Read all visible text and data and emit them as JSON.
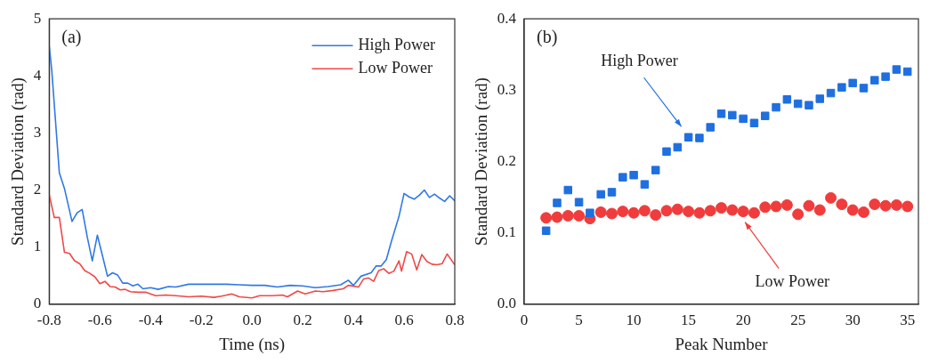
{
  "chart_data": [
    {
      "type": "line",
      "xlabel": "Time (ns)",
      "ylabel": "Standard Deviation (rad)",
      "annotations": [
        "(a)"
      ],
      "xlim": [
        -0.8,
        0.8
      ],
      "ylim": [
        0,
        5
      ],
      "xticks": [
        -0.8,
        -0.6,
        -0.4,
        -0.2,
        {
          "value": 0,
          "label": "0.0"
        },
        0.2,
        0.4,
        0.6,
        0.8
      ],
      "yticks": [
        0,
        1,
        2,
        3,
        4,
        5
      ],
      "legend": "top right",
      "grid": false,
      "marker": "none",
      "line_style": "solid",
      "series": [
        {
          "name": "High Power",
          "color": "#2f78e6",
          "x": [
            -0.8,
            -0.79,
            -0.76,
            -0.74,
            -0.71,
            -0.69,
            -0.67,
            -0.65,
            -0.63,
            -0.61,
            -0.59,
            -0.57,
            -0.55,
            -0.53,
            -0.51,
            -0.49,
            -0.47,
            -0.45,
            -0.43,
            -0.4,
            -0.37,
            -0.33,
            -0.3,
            -0.25,
            -0.2,
            -0.15,
            -0.1,
            -0.05,
            0,
            0.05,
            0.1,
            0.15,
            0.2,
            0.25,
            0.3,
            0.35,
            0.38,
            0.4,
            0.43,
            0.47,
            0.49,
            0.51,
            0.53,
            0.55,
            0.58,
            0.6,
            0.62,
            0.64,
            0.66,
            0.68,
            0.7,
            0.72,
            0.74,
            0.76,
            0.78,
            0.8
          ],
          "values": [
            4.53,
            4.1,
            2.3,
            2.03,
            1.45,
            1.6,
            1.66,
            1.18,
            0.76,
            1.21,
            0.85,
            0.49,
            0.55,
            0.51,
            0.37,
            0.37,
            0.32,
            0.35,
            0.27,
            0.29,
            0.26,
            0.31,
            0.3,
            0.35,
            0.35,
            0.35,
            0.35,
            0.34,
            0.33,
            0.33,
            0.3,
            0.33,
            0.32,
            0.29,
            0.31,
            0.34,
            0.42,
            0.33,
            0.49,
            0.55,
            0.67,
            0.67,
            0.78,
            1.1,
            1.54,
            1.94,
            1.88,
            1.84,
            1.91,
            2.0,
            1.87,
            1.93,
            1.86,
            1.8,
            1.9,
            1.81
          ]
        },
        {
          "name": "Low Power",
          "color": "#f04848",
          "x": [
            -0.8,
            -0.78,
            -0.76,
            -0.74,
            -0.72,
            -0.7,
            -0.68,
            -0.66,
            -0.64,
            -0.62,
            -0.6,
            -0.58,
            -0.56,
            -0.54,
            -0.52,
            -0.5,
            -0.48,
            -0.45,
            -0.42,
            -0.38,
            -0.34,
            -0.3,
            -0.25,
            -0.2,
            -0.15,
            -0.12,
            -0.08,
            -0.05,
            0,
            0.03,
            0.08,
            0.12,
            0.14,
            0.18,
            0.21,
            0.25,
            0.28,
            0.32,
            0.36,
            0.38,
            0.42,
            0.44,
            0.46,
            0.48,
            0.5,
            0.52,
            0.54,
            0.56,
            0.58,
            0.59,
            0.61,
            0.63,
            0.65,
            0.67,
            0.69,
            0.71,
            0.73,
            0.75,
            0.77,
            0.8
          ],
          "values": [
            1.92,
            1.52,
            1.52,
            0.91,
            0.89,
            0.76,
            0.71,
            0.59,
            0.54,
            0.48,
            0.36,
            0.4,
            0.31,
            0.3,
            0.25,
            0.26,
            0.22,
            0.21,
            0.21,
            0.15,
            0.16,
            0.15,
            0.13,
            0.14,
            0.12,
            0.14,
            0.18,
            0.13,
            0.11,
            0.15,
            0.15,
            0.16,
            0.13,
            0.23,
            0.18,
            0.23,
            0.22,
            0.24,
            0.27,
            0.33,
            0.3,
            0.44,
            0.46,
            0.4,
            0.59,
            0.62,
            0.54,
            0.58,
            0.76,
            0.58,
            0.92,
            0.88,
            0.6,
            0.87,
            0.75,
            0.7,
            0.69,
            0.71,
            0.88,
            0.69
          ]
        }
      ]
    },
    {
      "type": "scatter",
      "xlabel": "Peak Number",
      "ylabel": "Standard Deviation (rad)",
      "annotations": [
        "(b)"
      ],
      "xlim": [
        0,
        36
      ],
      "ylim": [
        0,
        0.4
      ],
      "xticks": [
        0,
        5,
        10,
        15,
        20,
        25,
        30,
        35
      ],
      "yticks": [
        {
          "value": 0,
          "label": "0.0"
        },
        0.1,
        0.2,
        0.3,
        0.4
      ],
      "legend": false,
      "grid": false,
      "x": [
        2,
        3,
        4,
        5,
        6,
        7,
        8,
        9,
        10,
        11,
        12,
        13,
        14,
        15,
        16,
        17,
        18,
        19,
        20,
        21,
        22,
        23,
        24,
        25,
        26,
        27,
        28,
        29,
        30,
        31,
        32,
        33,
        34,
        35
      ],
      "series": [
        {
          "name": "High Power",
          "color": "#1f6fe0",
          "marker": "square",
          "values": [
            0.103,
            0.142,
            0.16,
            0.143,
            0.128,
            0.154,
            0.157,
            0.178,
            0.181,
            0.168,
            0.188,
            0.214,
            0.22,
            0.234,
            0.233,
            0.248,
            0.267,
            0.265,
            0.26,
            0.254,
            0.264,
            0.276,
            0.287,
            0.281,
            0.279,
            0.288,
            0.296,
            0.304,
            0.31,
            0.303,
            0.314,
            0.319,
            0.329,
            0.326
          ]
        },
        {
          "name": "Low Power",
          "color": "#f03c3c",
          "marker": "circle",
          "values": [
            0.121,
            0.122,
            0.124,
            0.124,
            0.12,
            0.129,
            0.127,
            0.13,
            0.128,
            0.131,
            0.125,
            0.131,
            0.133,
            0.13,
            0.128,
            0.131,
            0.135,
            0.132,
            0.13,
            0.128,
            0.136,
            0.137,
            0.139,
            0.126,
            0.138,
            0.132,
            0.149,
            0.14,
            0.132,
            0.129,
            0.14,
            0.138,
            0.139,
            0.137
          ]
        }
      ]
    }
  ]
}
